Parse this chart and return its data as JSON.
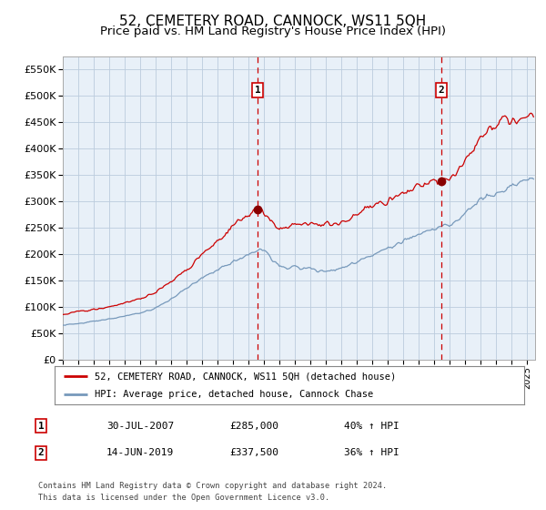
{
  "title": "52, CEMETERY ROAD, CANNOCK, WS11 5QH",
  "subtitle": "Price paid vs. HM Land Registry's House Price Index (HPI)",
  "title_fontsize": 11,
  "subtitle_fontsize": 9.5,
  "ylim": [
    0,
    575000
  ],
  "yticks": [
    0,
    50000,
    100000,
    150000,
    200000,
    250000,
    300000,
    350000,
    400000,
    450000,
    500000,
    550000
  ],
  "ytick_labels": [
    "£0",
    "£50K",
    "£100K",
    "£150K",
    "£200K",
    "£250K",
    "£300K",
    "£350K",
    "£400K",
    "£450K",
    "£500K",
    "£550K"
  ],
  "xlim_start": 1995.0,
  "xlim_end": 2025.5,
  "xtick_years": [
    1995,
    1996,
    1997,
    1998,
    1999,
    2000,
    2001,
    2002,
    2003,
    2004,
    2005,
    2006,
    2007,
    2008,
    2009,
    2010,
    2011,
    2012,
    2013,
    2014,
    2015,
    2016,
    2017,
    2018,
    2019,
    2020,
    2021,
    2022,
    2023,
    2024,
    2025
  ],
  "red_line_color": "#cc0000",
  "blue_line_color": "#7799bb",
  "background_fill_color": "#e8f0f8",
  "grid_color": "#bbccdd",
  "marker_color": "#880000",
  "vline_color": "#cc0000",
  "marker1_x": 2007.58,
  "marker1_y": 285000,
  "marker2_x": 2019.45,
  "marker2_y": 337500,
  "sale1_label": "1",
  "sale2_label": "2",
  "legend_line1": "52, CEMETERY ROAD, CANNOCK, WS11 5QH (detached house)",
  "legend_line2": "HPI: Average price, detached house, Cannock Chase",
  "sale1_date": "30-JUL-2007",
  "sale1_price": "£285,000",
  "sale1_hpi": "40% ↑ HPI",
  "sale2_date": "14-JUN-2019",
  "sale2_price": "£337,500",
  "sale2_hpi": "36% ↑ HPI",
  "footer1": "Contains HM Land Registry data © Crown copyright and database right 2024.",
  "footer2": "This data is licensed under the Open Government Licence v3.0.",
  "box_fill": "#ffffff",
  "box_edge": "#cc0000"
}
